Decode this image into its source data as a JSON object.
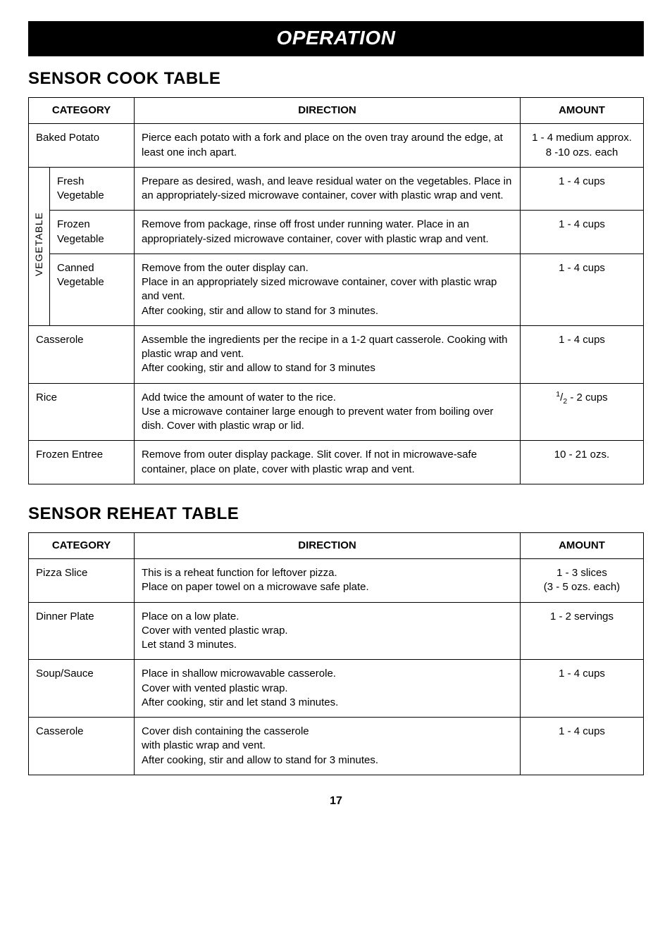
{
  "banner": "OPERATION",
  "sensor_cook": {
    "title": "SENSOR COOK TABLE",
    "headers": {
      "category": "CATEGORY",
      "direction": "DIRECTION",
      "amount": "AMOUNT"
    },
    "rows": {
      "baked_potato": {
        "category": "Baked Potato",
        "direction": "Pierce each potato with a fork and place on the oven tray around the edge, at least one inch apart.",
        "amount": "1 - 4 medium approx. 8 -10 ozs. each"
      },
      "veg_label": "VEGETABLE",
      "fresh_veg": {
        "category": "Fresh Vegetable",
        "direction": "Prepare as desired, wash, and leave residual water on the vegetables. Place in an appropriately-sized microwave container, cover with plastic wrap and vent.",
        "amount": "1 - 4 cups"
      },
      "frozen_veg": {
        "category": "Frozen Vegetable",
        "direction": "Remove from package, rinse off frost under running water. Place in an appropriately-sized microwave container, cover with plastic wrap and vent.",
        "amount": "1 - 4 cups"
      },
      "canned_veg": {
        "category": "Canned Vegetable",
        "direction": "Remove from the outer display can.\nPlace in an appropriately sized microwave container, cover with plastic wrap and vent.\nAfter cooking, stir and allow to stand for 3 minutes.",
        "amount": "1 - 4 cups"
      },
      "casserole": {
        "category": "Casserole",
        "direction": "Assemble the ingredients per the recipe in a 1-2 quart casserole. Cooking with plastic wrap and vent.\nAfter cooking, stir and allow to stand for 3 minutes",
        "amount": "1 - 4 cups"
      },
      "rice": {
        "category": "Rice",
        "direction": "Add twice the amount of water to the rice.\nUse a microwave container large enough to prevent water from boiling over dish. Cover with plastic wrap or lid.",
        "amount_suffix": " - 2 cups"
      },
      "frozen_entree": {
        "category": "Frozen Entree",
        "direction": "Remove from outer display package. Slit cover. If not in microwave-safe container, place on plate, cover with plastic wrap and vent.",
        "amount": "10 - 21 ozs."
      }
    }
  },
  "sensor_reheat": {
    "title": "SENSOR REHEAT TABLE",
    "headers": {
      "category": "CATEGORY",
      "direction": "DIRECTION",
      "amount": "AMOUNT"
    },
    "rows": {
      "pizza": {
        "category": "Pizza Slice",
        "direction": "This is a reheat function for leftover pizza.\nPlace on paper towel on a microwave safe plate.",
        "amount": "1 - 3 slices\n(3 - 5 ozs. each)"
      },
      "dinner": {
        "category": "Dinner Plate",
        "direction": "Place on a low plate.\nCover with vented plastic wrap.\nLet stand 3 minutes.",
        "amount": "1 - 2 servings"
      },
      "soup": {
        "category": "Soup/Sauce",
        "direction": "Place in shallow microwavable casserole.\nCover with vented plastic wrap.\nAfter cooking, stir and let stand 3 minutes.",
        "amount": "1 - 4 cups"
      },
      "casserole": {
        "category": "Casserole",
        "direction": "Cover dish containing the casserole\nwith plastic wrap and vent.\nAfter cooking, stir and allow to stand for 3 minutes.",
        "amount": "1 - 4 cups"
      }
    }
  },
  "page_number": "17"
}
